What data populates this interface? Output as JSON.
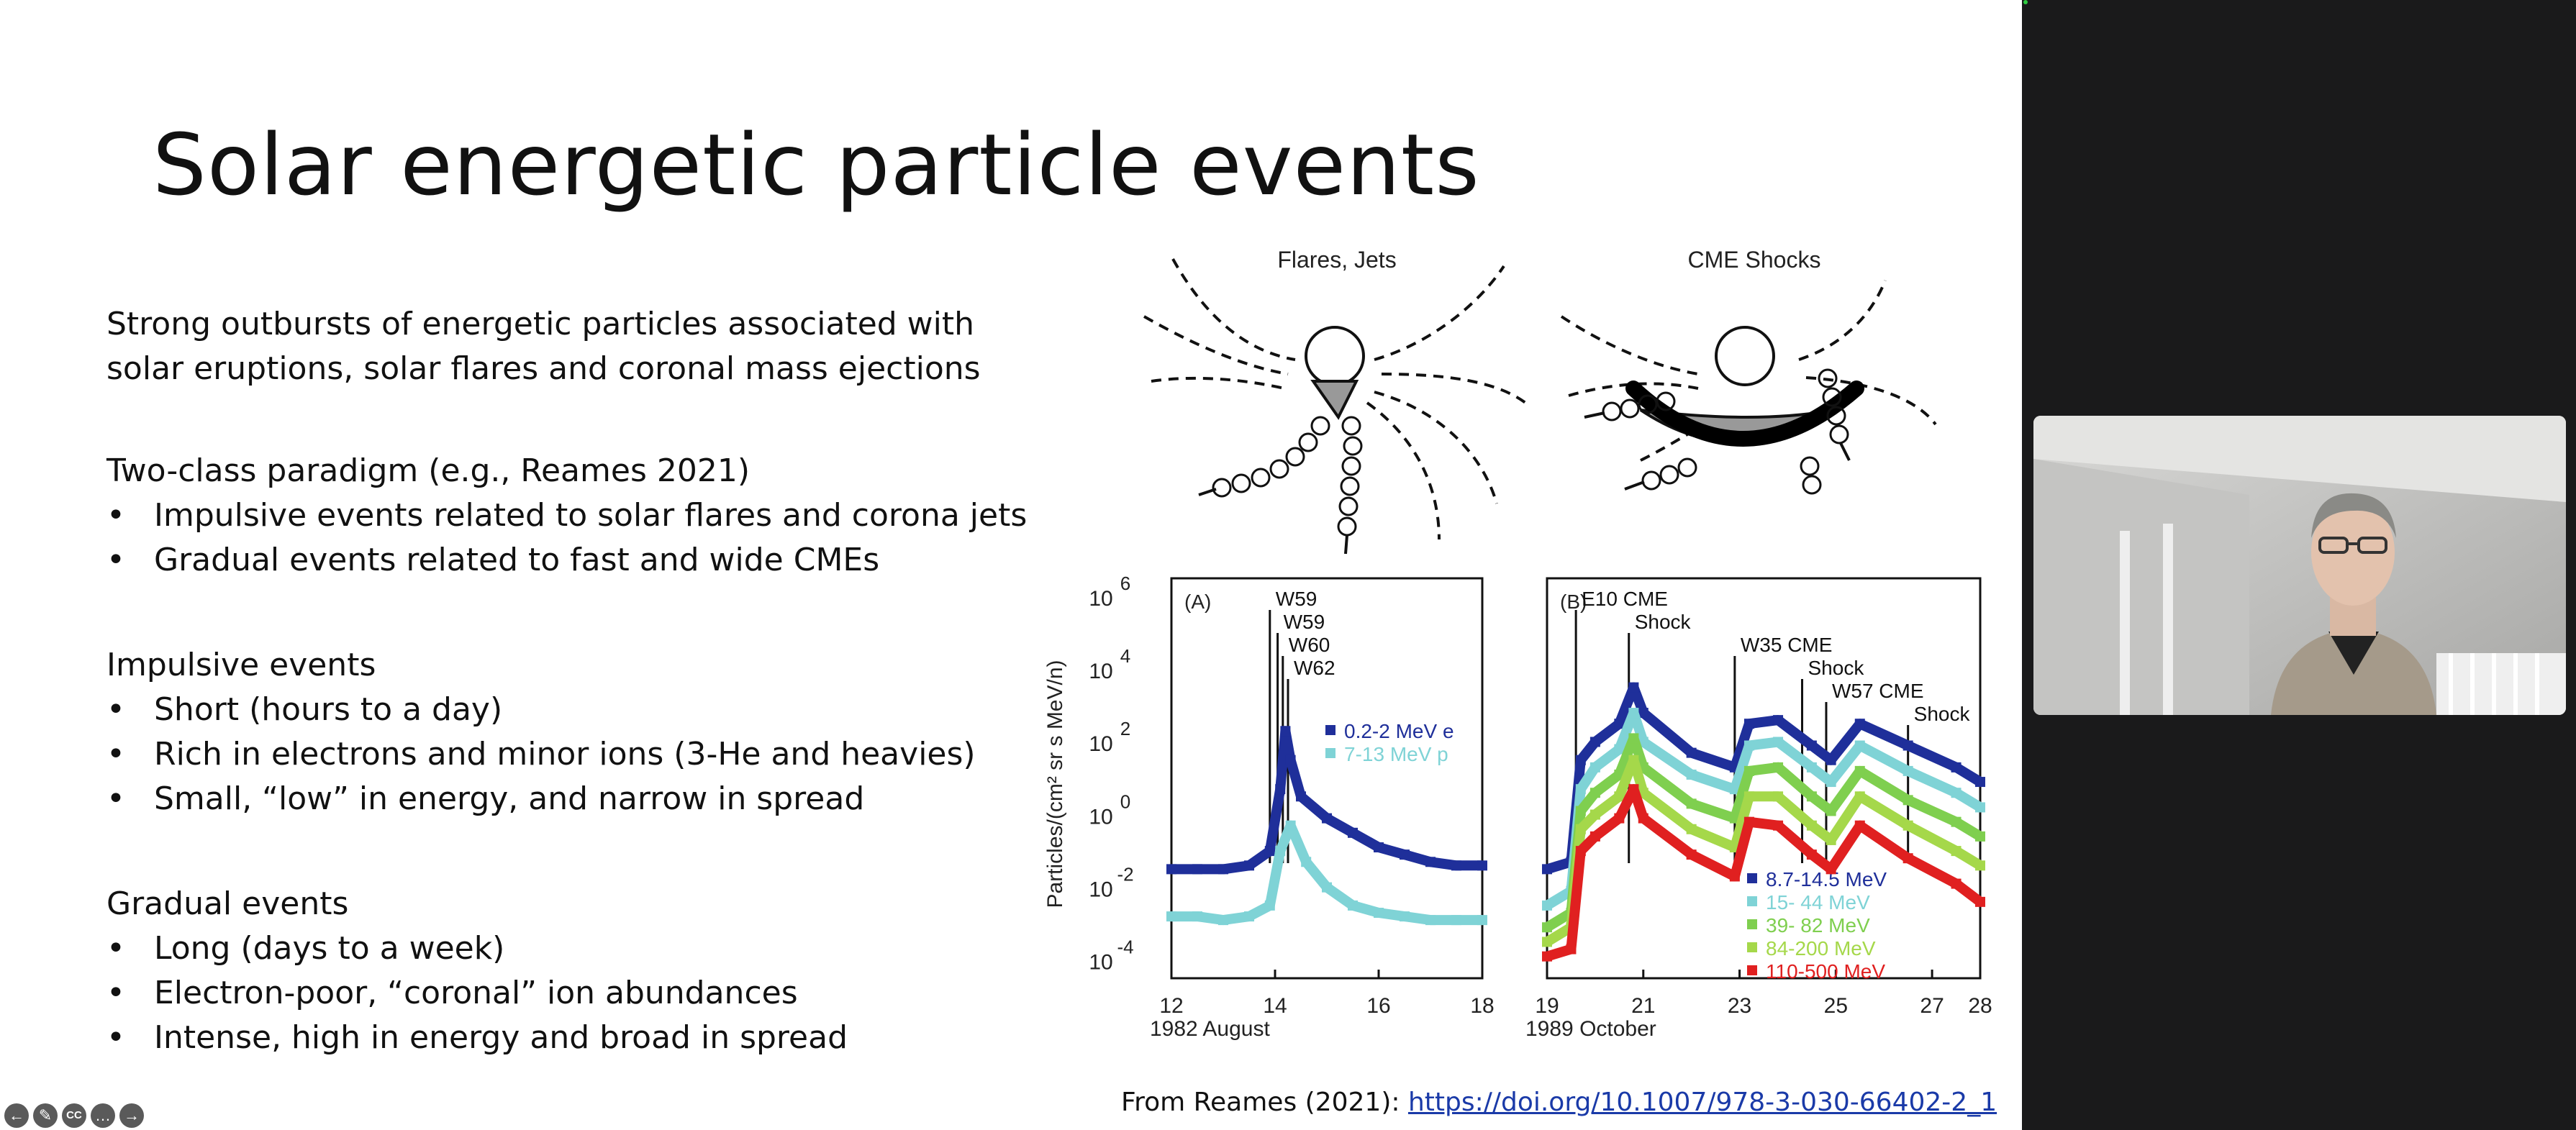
{
  "slide": {
    "title": "Solar energetic particle events",
    "intro": [
      "Strong outbursts of energetic particles associated with",
      "solar eruptions, solar flares and coronal mass ejections"
    ],
    "sections": [
      {
        "heading": "Two-class paradigm (e.g., Reames 2021)",
        "bullets": [
          "Impulsive events related to solar flares and corona jets",
          "Gradual events related to fast and wide CMEs"
        ]
      },
      {
        "heading": "Impulsive events",
        "bullets": [
          "Short (hours to a day)",
          "Rich in electrons and minor ions (3-He and heavies)",
          "Small, “low” in energy, and narrow in spread"
        ]
      },
      {
        "heading": "Gradual events",
        "bullets": [
          "Long (days to a week)",
          "Electron-poor, “coronal” ion abundances",
          "Intense, high in energy and broad in spread"
        ]
      }
    ],
    "bullet_char": "•",
    "reference_prefix": "From Reames (2021): ",
    "reference_link": "https://doi.org/10.1007/978-3-030-66402-2_1"
  },
  "figure": {
    "diagram_left_title": "Flares, Jets",
    "diagram_right_title": "CME Shocks",
    "ylabel": "Particles/(cm² sr s MeV/n)",
    "yticks": [
      "10",
      "10",
      "10",
      "10",
      "10",
      "10"
    ],
    "yexps": [
      "6",
      "4",
      "2",
      "0",
      "-2",
      "-4"
    ]
  },
  "chart_data": [
    {
      "type": "scatter",
      "panel_label": "(A)",
      "xlabel": "1982 August",
      "xticks": [
        "12",
        "14",
        "16",
        "18"
      ],
      "xlim": [
        12,
        18
      ],
      "ylim_log10": [
        -5,
        6
      ],
      "annotations": [
        "W59",
        "W59",
        "W60",
        "W62"
      ],
      "annotation_x": [
        13.9,
        14.05,
        14.15,
        14.25
      ],
      "series": [
        {
          "name": "0.2-2 MeV e",
          "color": "#1f2f9a",
          "x": [
            12.0,
            12.5,
            13.0,
            13.5,
            13.9,
            14.1,
            14.2,
            14.3,
            14.5,
            15.0,
            15.5,
            16.0,
            16.5,
            17.0,
            17.5,
            18.0
          ],
          "y": [
            -2.0,
            -2.0,
            -2.0,
            -1.9,
            -1.5,
            0.2,
            1.8,
            1.0,
            0.0,
            -0.6,
            -1.0,
            -1.4,
            -1.6,
            -1.8,
            -1.9,
            -1.9
          ]
        },
        {
          "name": "7-13 MeV p",
          "color": "#7fd3d6",
          "x": [
            12.0,
            12.5,
            13.0,
            13.5,
            13.9,
            14.1,
            14.3,
            14.6,
            15.0,
            15.5,
            16.0,
            16.5,
            17.0,
            17.5,
            18.0
          ],
          "y": [
            -3.3,
            -3.3,
            -3.4,
            -3.3,
            -3.0,
            -1.5,
            -0.8,
            -1.8,
            -2.5,
            -3.0,
            -3.2,
            -3.3,
            -3.4,
            -3.4,
            -3.4
          ]
        }
      ]
    },
    {
      "type": "scatter",
      "panel_label": "(B)",
      "xlabel": "1989 October",
      "xticks": [
        "19",
        "21",
        "23",
        "25",
        "27",
        "28"
      ],
      "xtick_values": [
        19,
        21,
        23,
        25,
        27,
        28
      ],
      "xlim": [
        19,
        28
      ],
      "ylim_log10": [
        -5,
        6
      ],
      "annotations": [
        "E10 CME",
        "Shock",
        "W35 CME",
        "Shock",
        "W57 CME",
        "Shock"
      ],
      "annotation_x": [
        19.6,
        20.7,
        22.9,
        24.3,
        24.8,
        26.5
      ],
      "series": [
        {
          "name": "8.7-14.5 MeV",
          "color": "#1f2f9a",
          "x": [
            19.0,
            19.5,
            19.7,
            20.0,
            20.5,
            20.8,
            21.0,
            22.0,
            22.9,
            23.2,
            23.8,
            24.5,
            24.9,
            25.5,
            26.5,
            27.5,
            28.0
          ],
          "y": [
            -2.0,
            -1.8,
            1.0,
            1.5,
            2.0,
            3.0,
            2.3,
            1.2,
            0.8,
            2.0,
            2.1,
            1.4,
            1.0,
            2.0,
            1.4,
            0.8,
            0.4
          ]
        },
        {
          "name": "15- 44 MeV",
          "color": "#7fd3d6",
          "x": [
            19.0,
            19.5,
            19.7,
            20.0,
            20.5,
            20.8,
            21.0,
            22.0,
            22.9,
            23.2,
            23.8,
            24.5,
            24.9,
            25.5,
            26.5,
            27.5,
            28.0
          ],
          "y": [
            -3.0,
            -2.6,
            0.2,
            0.8,
            1.3,
            2.3,
            1.5,
            0.6,
            0.2,
            1.4,
            1.5,
            0.8,
            0.4,
            1.4,
            0.7,
            0.1,
            -0.3
          ]
        },
        {
          "name": "39- 82 MeV",
          "color": "#7fcf4f",
          "x": [
            19.0,
            19.5,
            19.7,
            20.0,
            20.5,
            20.8,
            21.0,
            22.0,
            22.9,
            23.2,
            23.8,
            24.5,
            24.9,
            25.5,
            26.5,
            27.5,
            28.0
          ],
          "y": [
            -3.6,
            -3.2,
            -0.4,
            0.1,
            0.6,
            1.6,
            0.8,
            -0.2,
            -0.6,
            0.7,
            0.8,
            0.0,
            -0.4,
            0.7,
            -0.1,
            -0.7,
            -1.1
          ]
        },
        {
          "name": "84-200 MeV",
          "color": "#a5d84a",
          "x": [
            19.0,
            19.5,
            19.7,
            20.0,
            20.5,
            20.8,
            21.0,
            22.0,
            22.9,
            23.2,
            23.8,
            24.5,
            24.9,
            25.5,
            26.5,
            27.5,
            28.0
          ],
          "y": [
            -4.0,
            -3.6,
            -0.9,
            -0.5,
            0.0,
            1.0,
            0.1,
            -0.9,
            -1.4,
            0.0,
            0.0,
            -0.8,
            -1.2,
            0.0,
            -0.8,
            -1.5,
            -1.9
          ]
        },
        {
          "name": "110-500 MeV",
          "color": "#e02020",
          "x": [
            19.0,
            19.5,
            19.7,
            20.0,
            20.5,
            20.8,
            21.0,
            22.0,
            22.9,
            23.2,
            23.8,
            24.5,
            24.9,
            25.5,
            26.5,
            27.5,
            28.0
          ],
          "y": [
            -4.4,
            -4.2,
            -1.5,
            -1.1,
            -0.6,
            0.2,
            -0.6,
            -1.6,
            -2.2,
            -0.7,
            -0.8,
            -1.6,
            -2.0,
            -0.8,
            -1.7,
            -2.4,
            -2.9
          ]
        }
      ]
    }
  ],
  "toolbar": {
    "icons": [
      "prev-icon",
      "pen-icon",
      "captions-icon",
      "more-icon",
      "next-icon"
    ],
    "glyphs": [
      "←",
      "✎",
      "CC",
      "…",
      "→"
    ]
  }
}
